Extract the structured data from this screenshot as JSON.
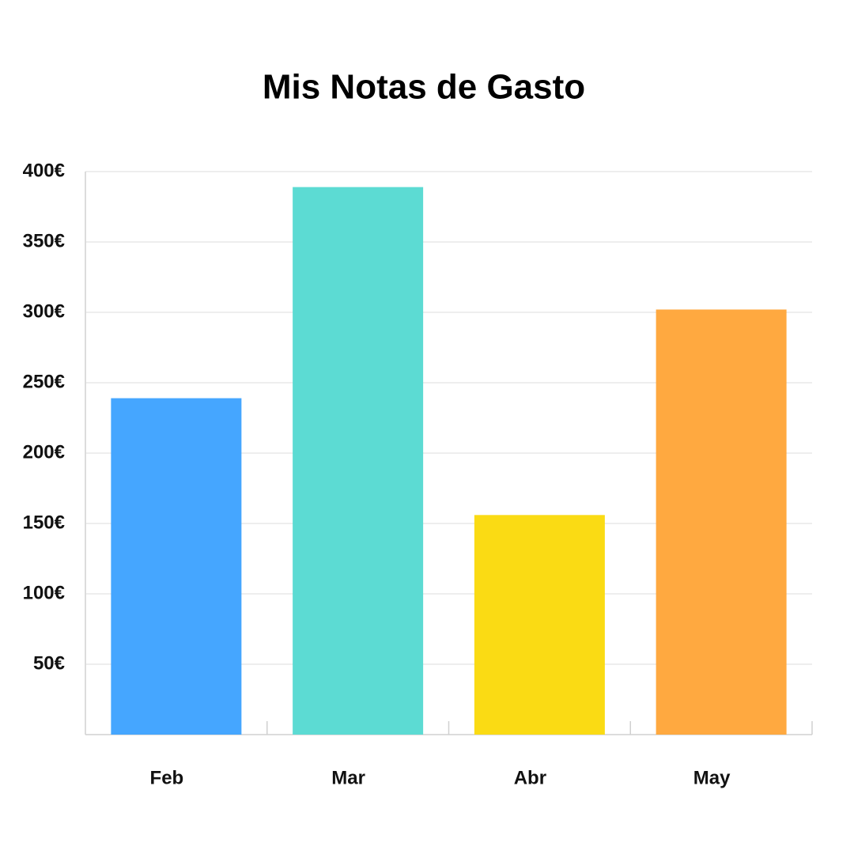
{
  "chart_data": {
    "type": "bar",
    "title": "Mis Notas de Gasto",
    "categories": [
      "Feb",
      "Mar",
      "Abr",
      "May"
    ],
    "values": [
      239,
      389,
      156,
      302
    ],
    "colors": [
      "#45a6ff",
      "#5cdbd3",
      "#fadb14",
      "#ffa940"
    ],
    "ylim": [
      0,
      400
    ],
    "yticks": [
      {
        "value": 50,
        "label": "50€"
      },
      {
        "value": 100,
        "label": "100€"
      },
      {
        "value": 150,
        "label": "150€"
      },
      {
        "value": 200,
        "label": "200€"
      },
      {
        "value": 250,
        "label": "250€"
      },
      {
        "value": 300,
        "label": "300€"
      },
      {
        "value": 350,
        "label": "350€"
      },
      {
        "value": 400,
        "label": "400€"
      }
    ],
    "grid": true
  }
}
